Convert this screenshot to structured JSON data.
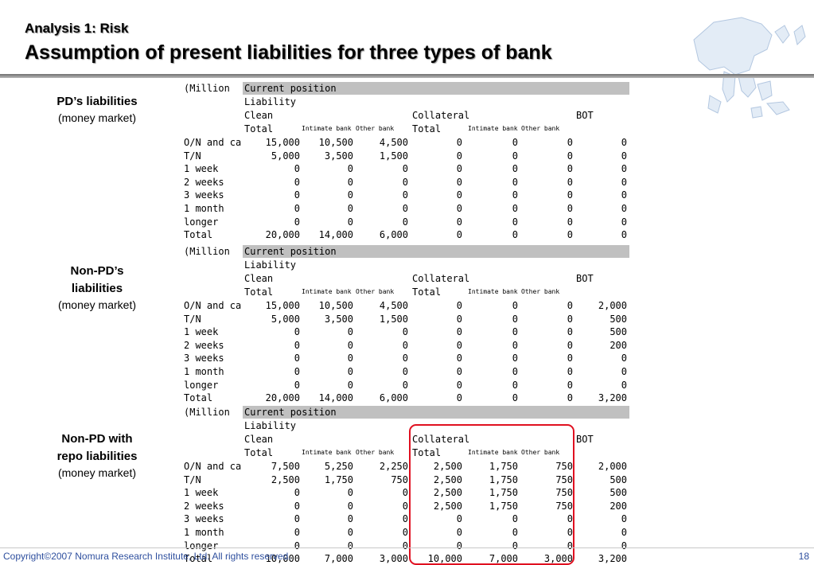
{
  "header": {
    "subtitle": "Analysis 1: Risk",
    "title": "Assumption of present liabilities for three types of bank"
  },
  "tables": [
    {
      "side_bold": [
        "PD’s liabilities"
      ],
      "side_norm": "(money market)",
      "unit": "(Million",
      "position": "Current position",
      "liability": "Liability",
      "clean": "Clean",
      "collateral": "Collateral",
      "bot": "BOT",
      "total": "Total",
      "interbank": "Intimate bank",
      "otherbank": "Other bank",
      "rows": [
        {
          "label": "O/N and ca",
          "v": [
            "15,000",
            "10,500",
            "4,500",
            "0",
            "0",
            "0",
            "0"
          ]
        },
        {
          "label": "T/N",
          "v": [
            "5,000",
            "3,500",
            "1,500",
            "0",
            "0",
            "0",
            "0"
          ]
        },
        {
          "label": "1 week",
          "v": [
            "0",
            "0",
            "0",
            "0",
            "0",
            "0",
            "0"
          ]
        },
        {
          "label": "2 weeks",
          "v": [
            "0",
            "0",
            "0",
            "0",
            "0",
            "0",
            "0"
          ]
        },
        {
          "label": "3 weeks",
          "v": [
            "0",
            "0",
            "0",
            "0",
            "0",
            "0",
            "0"
          ]
        },
        {
          "label": "1 month",
          "v": [
            "0",
            "0",
            "0",
            "0",
            "0",
            "0",
            "0"
          ]
        },
        {
          "label": "longer",
          "v": [
            "0",
            "0",
            "0",
            "0",
            "0",
            "0",
            "0"
          ]
        },
        {
          "label": "Total",
          "v": [
            "20,000",
            "14,000",
            "6,000",
            "0",
            "0",
            "0",
            "0"
          ]
        }
      ]
    },
    {
      "side_bold": [
        "Non-PD’s",
        "liabilities"
      ],
      "side_norm": "(money market)",
      "unit": "(Million",
      "position": "Current position",
      "liability": "Liability",
      "clean": "Clean",
      "collateral": "Collateral",
      "bot": "BOT",
      "total": "Total",
      "interbank": "Intimate bank",
      "otherbank": "Other bank",
      "rows": [
        {
          "label": "O/N and ca",
          "v": [
            "15,000",
            "10,500",
            "4,500",
            "0",
            "0",
            "0",
            "2,000"
          ]
        },
        {
          "label": "T/N",
          "v": [
            "5,000",
            "3,500",
            "1,500",
            "0",
            "0",
            "0",
            "500"
          ]
        },
        {
          "label": "1 week",
          "v": [
            "0",
            "0",
            "0",
            "0",
            "0",
            "0",
            "500"
          ]
        },
        {
          "label": "2 weeks",
          "v": [
            "0",
            "0",
            "0",
            "0",
            "0",
            "0",
            "200"
          ]
        },
        {
          "label": "3 weeks",
          "v": [
            "0",
            "0",
            "0",
            "0",
            "0",
            "0",
            "0"
          ]
        },
        {
          "label": "1 month",
          "v": [
            "0",
            "0",
            "0",
            "0",
            "0",
            "0",
            "0"
          ]
        },
        {
          "label": "longer",
          "v": [
            "0",
            "0",
            "0",
            "0",
            "0",
            "0",
            "0"
          ]
        },
        {
          "label": "Total",
          "v": [
            "20,000",
            "14,000",
            "6,000",
            "0",
            "0",
            "0",
            "3,200"
          ]
        }
      ]
    },
    {
      "side_bold": [
        "Non-PD with",
        "repo liabilities"
      ],
      "side_norm": "(money market)",
      "unit": "(Million",
      "position": "Current position",
      "liability": "Liability",
      "clean": "Clean",
      "collateral": "Collateral",
      "bot": "BOT",
      "total": "Total",
      "interbank": "Intimate bank",
      "otherbank": "Other bank",
      "rows": [
        {
          "label": "O/N and ca",
          "v": [
            "7,500",
            "5,250",
            "2,250",
            "2,500",
            "1,750",
            "750",
            "2,000"
          ]
        },
        {
          "label": "T/N",
          "v": [
            "2,500",
            "1,750",
            "750",
            "2,500",
            "1,750",
            "750",
            "500"
          ]
        },
        {
          "label": "1 week",
          "v": [
            "0",
            "0",
            "0",
            "2,500",
            "1,750",
            "750",
            "500"
          ]
        },
        {
          "label": "2 weeks",
          "v": [
            "0",
            "0",
            "0",
            "2,500",
            "1,750",
            "750",
            "200"
          ]
        },
        {
          "label": "3 weeks",
          "v": [
            "0",
            "0",
            "0",
            "0",
            "0",
            "0",
            "0"
          ]
        },
        {
          "label": "1 month",
          "v": [
            "0",
            "0",
            "0",
            "0",
            "0",
            "0",
            "0"
          ]
        },
        {
          "label": "longer",
          "v": [
            "0",
            "0",
            "0",
            "0",
            "0",
            "0",
            "0"
          ]
        },
        {
          "label": "Total",
          "v": [
            "10,000",
            "7,000",
            "3,000",
            "10,000",
            "7,000",
            "3,000",
            "3,200"
          ]
        }
      ]
    }
  ],
  "footer": {
    "copyright": "Copyright©2007 Nomura Research Institute, Ltd. All rights reserved.",
    "page": "18"
  },
  "colors": {
    "highlight_box": "#e01020",
    "footer_text": "#2e4f9e",
    "header_band": "#c0c0c0"
  }
}
